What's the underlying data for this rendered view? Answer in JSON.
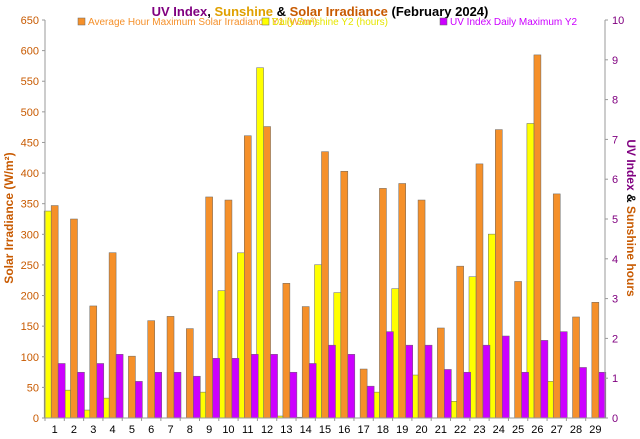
{
  "chart_data": {
    "type": "bar",
    "title_parts": [
      {
        "text": "UV Index",
        "color": "#800080"
      },
      {
        "text": ", ",
        "color": "#000000"
      },
      {
        "text": "Sunshine",
        "color": "#e0a000"
      },
      {
        "text": " & ",
        "color": "#000000"
      },
      {
        "text": "Solar Irradiance",
        "color": "#c85a00"
      },
      {
        "text": " (February 2024)",
        "color": "#000000"
      }
    ],
    "ylabel_left": "Solar Irradiance (W/m²)",
    "ylabel_right_parts": [
      {
        "text": "UV Index",
        "color": "#800080"
      },
      {
        "text": " & ",
        "color": "#000000"
      },
      {
        "text": "Sunshine hours",
        "color": "#c85a00"
      }
    ],
    "categories": [
      "1",
      "2",
      "3",
      "4",
      "5",
      "6",
      "7",
      "8",
      "9",
      "10",
      "11",
      "12",
      "13",
      "14",
      "15",
      "16",
      "17",
      "18",
      "19",
      "20",
      "21",
      "22",
      "23",
      "24",
      "25",
      "26",
      "27",
      "28",
      "29"
    ],
    "ylim_left": [
      0,
      650
    ],
    "ylim_right": [
      0,
      10
    ],
    "yticks_left": [
      0,
      50,
      100,
      150,
      200,
      250,
      300,
      350,
      400,
      450,
      500,
      550,
      600,
      650
    ],
    "yticks_right": [
      0,
      1,
      2,
      3,
      4,
      5,
      6,
      7,
      8,
      9,
      10
    ],
    "left_axis_color": "#c85a00",
    "right_axis_color": "#800080",
    "series": [
      {
        "name": "Average Hour Maximum Solar Irradiance Y1 (W/m²)",
        "axis": "left",
        "color": "#f5902a",
        "values": [
          347,
          325,
          183,
          270,
          101,
          159,
          166,
          146,
          361,
          356,
          461,
          476,
          220,
          182,
          435,
          403,
          80,
          375,
          383,
          356,
          147,
          248,
          415,
          471,
          223,
          593,
          366,
          165,
          189
        ]
      },
      {
        "name": "Daily Sunshine Y2 (hours)",
        "axis": "right",
        "color": "#ffff00",
        "values": [
          5.2,
          0.7,
          0.2,
          0.5,
          0.0,
          0.0,
          0.0,
          0.0,
          0.65,
          3.2,
          4.15,
          8.8,
          0.05,
          0.02,
          3.85,
          3.15,
          0.0,
          0.65,
          3.25,
          1.08,
          0.0,
          0.42,
          3.55,
          4.62,
          0.0,
          7.4,
          0.92,
          0.0,
          0.0
        ]
      },
      {
        "name": "UV Index Daily Maximum Y2",
        "axis": "right",
        "color": "#cc00ff",
        "values": [
          1.37,
          1.15,
          1.37,
          1.6,
          0.92,
          1.15,
          1.15,
          1.05,
          1.5,
          1.5,
          1.6,
          1.6,
          1.15,
          1.37,
          1.83,
          1.6,
          0.8,
          2.17,
          1.83,
          1.83,
          1.22,
          1.15,
          1.83,
          2.06,
          1.15,
          1.95,
          2.17,
          1.27,
          1.15
        ]
      }
    ],
    "grid": false,
    "legend": "top"
  }
}
